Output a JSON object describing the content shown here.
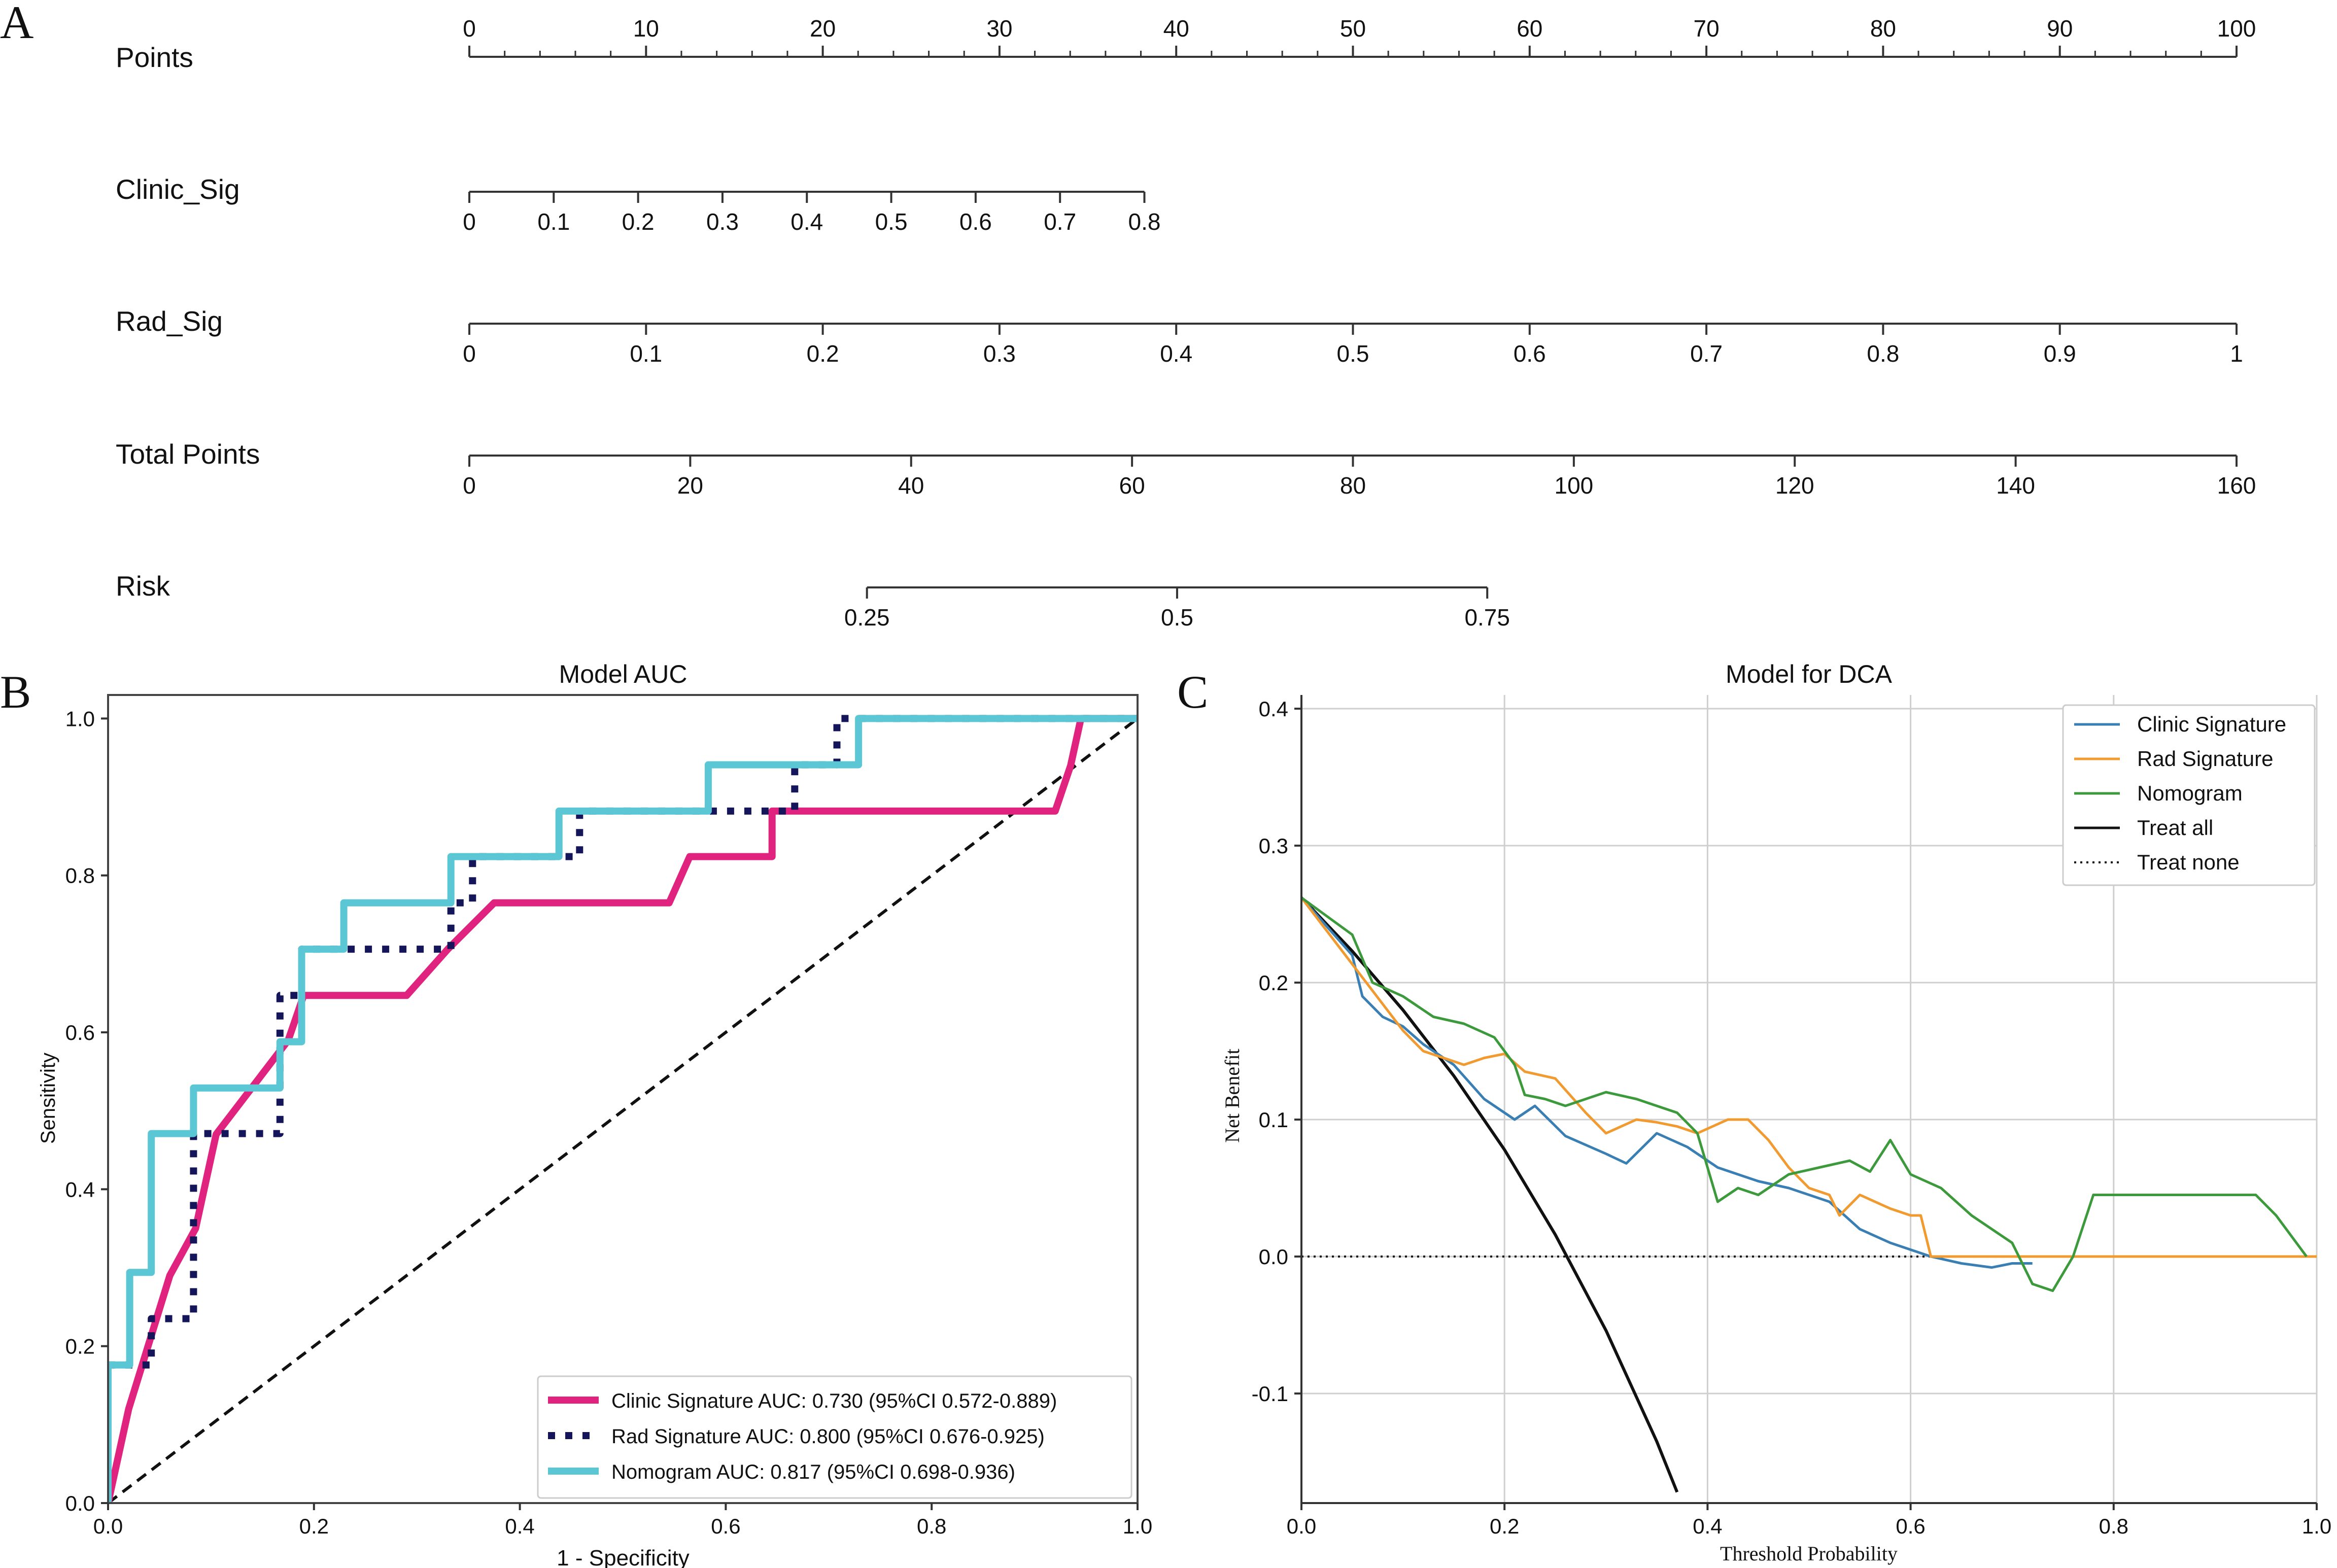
{
  "panel_labels": {
    "a": "A",
    "b": "B",
    "c": "C"
  },
  "chart_data": [
    {
      "type": "nomogram",
      "rows": [
        {
          "key": "points",
          "label": "Points",
          "min": 0,
          "max": 100,
          "major": [
            0,
            10,
            20,
            30,
            40,
            50,
            60,
            70,
            80,
            90,
            100
          ],
          "tick_labels": [
            "0",
            "10",
            "20",
            "30",
            "40",
            "50",
            "60",
            "70",
            "80",
            "90",
            "100"
          ],
          "minor_step": 2,
          "label_side": "above",
          "points_min": 0,
          "points_max": 100
        },
        {
          "key": "clinic",
          "label": "Clinic_Sig",
          "min": 0,
          "max": 0.8,
          "major": [
            0,
            0.1,
            0.2,
            0.3,
            0.4,
            0.5,
            0.6,
            0.7,
            0.8
          ],
          "tick_labels": [
            "0",
            "0.1",
            "0.2",
            "0.3",
            "0.4",
            "0.5",
            "0.6",
            "0.7",
            "0.8"
          ],
          "label_side": "below",
          "points_min": 0,
          "points_max": 38.2
        },
        {
          "key": "rad",
          "label": "Rad_Sig",
          "min": 0,
          "max": 1,
          "major": [
            0,
            0.1,
            0.2,
            0.3,
            0.4,
            0.5,
            0.6,
            0.7,
            0.8,
            0.9,
            1
          ],
          "tick_labels": [
            "0",
            "0.1",
            "0.2",
            "0.3",
            "0.4",
            "0.5",
            "0.6",
            "0.7",
            "0.8",
            "0.9",
            "1"
          ],
          "label_side": "below",
          "points_min": 0,
          "points_max": 100
        },
        {
          "key": "total",
          "label": "Total Points",
          "min": 0,
          "max": 160,
          "major": [
            0,
            20,
            40,
            60,
            80,
            100,
            120,
            140,
            160
          ],
          "tick_labels": [
            "0",
            "20",
            "40",
            "60",
            "80",
            "100",
            "120",
            "140",
            "160"
          ],
          "label_side": "below",
          "points_min": 0,
          "points_max": 100
        },
        {
          "key": "risk",
          "label": "Risk",
          "min": 0.25,
          "max": 0.75,
          "major": [
            0.25,
            0.5,
            0.75
          ],
          "tick_labels": [
            "0.25",
            "0.5",
            "0.75"
          ],
          "label_side": "below",
          "points_min": 22.5,
          "points_max": 57.6
        }
      ]
    },
    {
      "type": "line",
      "title": "Model AUC",
      "xlabel": "1 - Specificity",
      "ylabel": "Sensitivity",
      "xlim": [
        0,
        1
      ],
      "ylim": [
        0,
        1.03
      ],
      "xticks": [
        0,
        0.2,
        0.4,
        0.6,
        0.8,
        1.0
      ],
      "xtick_labels": [
        "0.0",
        "0.2",
        "0.4",
        "0.6",
        "0.8",
        "1.0"
      ],
      "yticks": [
        0,
        0.2,
        0.4,
        0.6,
        0.8,
        1.0
      ],
      "ytick_labels": [
        "0.0",
        "0.2",
        "0.4",
        "0.6",
        "0.8",
        "1.0"
      ],
      "grid": false,
      "legend_position": "bottom-right",
      "series": [
        {
          "name": "Clinic Signature AUC: 0.730 (95%CI 0.572-0.889)",
          "color": "#e0237f",
          "style": "solid",
          "x": [
            0,
            0.02,
            0.06,
            0.085,
            0.105,
            0.14,
            0.175,
            0.19,
            0.29,
            0.33,
            0.375,
            0.545,
            0.565,
            0.645,
            0.645,
            0.92,
            0.935,
            0.945,
            1.0
          ],
          "y": [
            0,
            0.12,
            0.29,
            0.35,
            0.47,
            0.53,
            0.59,
            0.647,
            0.647,
            0.706,
            0.765,
            0.765,
            0.824,
            0.824,
            0.882,
            0.882,
            0.94,
            1.0,
            1.0
          ]
        },
        {
          "name": "Rad Signature AUC: 0.800 (95%CI 0.676-0.925)",
          "color": "#15155a",
          "style": "dotted",
          "x": [
            0,
            0,
            0.042,
            0.042,
            0.083,
            0.083,
            0.167,
            0.167,
            0.188,
            0.188,
            0.333,
            0.333,
            0.354,
            0.354,
            0.458,
            0.458,
            0.479,
            0.479,
            0.646,
            0.646,
            0.667,
            0.667,
            0.708,
            0.708,
            1.0
          ],
          "y": [
            0,
            0.176,
            0.176,
            0.235,
            0.235,
            0.471,
            0.471,
            0.647,
            0.647,
            0.706,
            0.706,
            0.765,
            0.765,
            0.824,
            0.824,
            0.882,
            0.882,
            0.882,
            0.882,
            0.882,
            0.882,
            0.941,
            0.941,
            1.0,
            1.0
          ]
        },
        {
          "name": "Nomogram AUC: 0.817 (95%CI 0.698-0.936)",
          "color": "#5bc7d5",
          "style": "solid",
          "x": [
            0,
            0,
            0.021,
            0.021,
            0.042,
            0.042,
            0.083,
            0.083,
            0.167,
            0.167,
            0.188,
            0.188,
            0.229,
            0.229,
            0.333,
            0.333,
            0.438,
            0.438,
            0.583,
            0.583,
            0.729,
            0.729,
            1.0
          ],
          "y": [
            0,
            0.176,
            0.176,
            0.294,
            0.294,
            0.471,
            0.471,
            0.529,
            0.529,
            0.588,
            0.588,
            0.706,
            0.706,
            0.765,
            0.765,
            0.824,
            0.824,
            0.882,
            0.882,
            0.941,
            0.941,
            1.0,
            1.0
          ]
        },
        {
          "name": "Reference",
          "color": "#111111",
          "style": "dashed",
          "x": [
            0,
            1
          ],
          "y": [
            0,
            1
          ]
        }
      ]
    },
    {
      "type": "line",
      "title": "Model for DCA",
      "xlabel": "Threshold Probability",
      "ylabel": "Net Benefit",
      "xlim": [
        0,
        1
      ],
      "ylim": [
        -0.18,
        0.41
      ],
      "xticks": [
        0,
        0.2,
        0.4,
        0.6,
        0.8,
        1.0
      ],
      "xtick_labels": [
        "0.0",
        "0.2",
        "0.4",
        "0.6",
        "0.8",
        "1.0"
      ],
      "yticks": [
        -0.1,
        0,
        0.1,
        0.2,
        0.3,
        0.4
      ],
      "ytick_labels": [
        "-0.1",
        "0.0",
        "0.1",
        "0.2",
        "0.3",
        "0.4"
      ],
      "grid": true,
      "legend_position": "top-right",
      "series": [
        {
          "name": "Clinic Signature",
          "color": "#3a7fb3",
          "style": "solid",
          "x": [
            0,
            0.05,
            0.06,
            0.08,
            0.1,
            0.12,
            0.15,
            0.18,
            0.21,
            0.23,
            0.26,
            0.3,
            0.32,
            0.35,
            0.38,
            0.41,
            0.45,
            0.48,
            0.52,
            0.55,
            0.58,
            0.6,
            0.62,
            0.65,
            0.68,
            0.7,
            0.72
          ],
          "y": [
            0.262,
            0.22,
            0.19,
            0.175,
            0.168,
            0.155,
            0.14,
            0.115,
            0.1,
            0.11,
            0.088,
            0.075,
            0.068,
            0.09,
            0.08,
            0.065,
            0.055,
            0.05,
            0.04,
            0.02,
            0.01,
            0.005,
            0.0,
            -0.005,
            -0.008,
            -0.005,
            -0.005
          ]
        },
        {
          "name": "Rad Signature",
          "color": "#f09a2f",
          "style": "solid",
          "x": [
            0,
            0.1,
            0.12,
            0.14,
            0.16,
            0.18,
            0.2,
            0.22,
            0.25,
            0.28,
            0.3,
            0.33,
            0.35,
            0.37,
            0.39,
            0.42,
            0.44,
            0.46,
            0.48,
            0.5,
            0.52,
            0.53,
            0.55,
            0.58,
            0.6,
            0.61,
            0.62,
            1.0
          ],
          "y": [
            0.262,
            0.165,
            0.15,
            0.145,
            0.14,
            0.145,
            0.148,
            0.135,
            0.13,
            0.105,
            0.09,
            0.1,
            0.098,
            0.095,
            0.09,
            0.1,
            0.1,
            0.085,
            0.065,
            0.05,
            0.045,
            0.03,
            0.045,
            0.035,
            0.03,
            0.03,
            0.0,
            0.0
          ]
        },
        {
          "name": "Nomogram",
          "color": "#3c9a3c",
          "style": "solid",
          "x": [
            0,
            0.05,
            0.07,
            0.1,
            0.13,
            0.16,
            0.19,
            0.21,
            0.22,
            0.24,
            0.26,
            0.28,
            0.3,
            0.33,
            0.35,
            0.37,
            0.39,
            0.41,
            0.43,
            0.45,
            0.48,
            0.51,
            0.54,
            0.56,
            0.58,
            0.6,
            0.63,
            0.66,
            0.7,
            0.72,
            0.74,
            0.76,
            0.78,
            0.8,
            0.85,
            0.9,
            0.94,
            0.96,
            0.99
          ],
          "y": [
            0.262,
            0.235,
            0.2,
            0.19,
            0.175,
            0.17,
            0.16,
            0.14,
            0.118,
            0.115,
            0.11,
            0.115,
            0.12,
            0.115,
            0.11,
            0.105,
            0.09,
            0.04,
            0.05,
            0.045,
            0.06,
            0.065,
            0.07,
            0.062,
            0.085,
            0.06,
            0.05,
            0.03,
            0.01,
            -0.02,
            -0.025,
            0.0,
            0.045,
            0.045,
            0.045,
            0.045,
            0.045,
            0.03,
            0.0
          ]
        },
        {
          "name": "Treat all",
          "color": "#111111",
          "style": "solid",
          "prevalence": 0.262,
          "x": [
            0,
            0.05,
            0.1,
            0.15,
            0.2,
            0.25,
            0.3,
            0.35,
            0.37
          ],
          "y": [
            0.262,
            0.223,
            0.18,
            0.132,
            0.078,
            0.016,
            -0.054,
            -0.135,
            -0.172
          ]
        },
        {
          "name": "Treat none",
          "color": "#111111",
          "style": "dotted",
          "x": [
            0,
            1
          ],
          "y": [
            0,
            0
          ]
        }
      ]
    }
  ]
}
